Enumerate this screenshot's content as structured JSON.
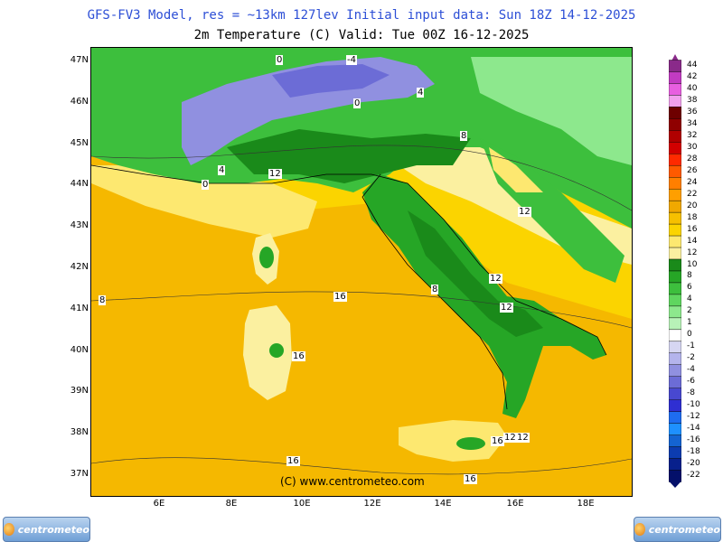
{
  "header": {
    "title1": "GFS-FV3 Model, res = ~13km 127lev    Initial input data: Sun 18Z 14-12-2025",
    "title2": "2m Temperature (C)  Valid: Tue 00Z 16-12-2025"
  },
  "axes": {
    "lat_labels": [
      "47N",
      "46N",
      "45N",
      "44N",
      "43N",
      "42N",
      "41N",
      "40N",
      "39N",
      "38N",
      "37N"
    ],
    "lon_labels": [
      "6E",
      "8E",
      "10E",
      "12E",
      "14E",
      "16E",
      "18E"
    ]
  },
  "colorbar": {
    "levels": [
      "44",
      "42",
      "40",
      "38",
      "36",
      "34",
      "32",
      "30",
      "28",
      "26",
      "24",
      "22",
      "20",
      "18",
      "16",
      "14",
      "12",
      "10",
      "8",
      "6",
      "4",
      "2",
      "1",
      "0",
      "-1",
      "-2",
      "-4",
      "-6",
      "-8",
      "-10",
      "-12",
      "-14",
      "-16",
      "-18",
      "-20",
      "-22"
    ],
    "colors": [
      "#8a2a8a",
      "#c23bc2",
      "#e85fe0",
      "#f2a0ee",
      "#6e0000",
      "#8f0000",
      "#b00000",
      "#d20000",
      "#ff2a00",
      "#ff5a00",
      "#ff7f00",
      "#ff9f00",
      "#f0a800",
      "#f6c000",
      "#fbd400",
      "#fde870",
      "#fbf0a0",
      "#1a8a1a",
      "#26a626",
      "#3dbf3d",
      "#5fd65f",
      "#8de88d",
      "#b8f2b8",
      "#ffffff",
      "#d6d6f2",
      "#b4b4ec",
      "#9090e0",
      "#6c6cd6",
      "#4848d0",
      "#2f2fd2",
      "#1e6cf0",
      "#1e90ff",
      "#1464d2",
      "#0c3cb0",
      "#08208c",
      "#04106a"
    ]
  },
  "contour_labels": [
    "0",
    "-4",
    "0",
    "4",
    "8",
    "4",
    "0",
    "12",
    "12",
    "12",
    "8",
    "12",
    "8",
    "16",
    "16",
    "16",
    "16",
    "12",
    "16",
    "12"
  ],
  "watermark": "(C) www.centrometeo.com",
  "logo_text": "centrometeo"
}
